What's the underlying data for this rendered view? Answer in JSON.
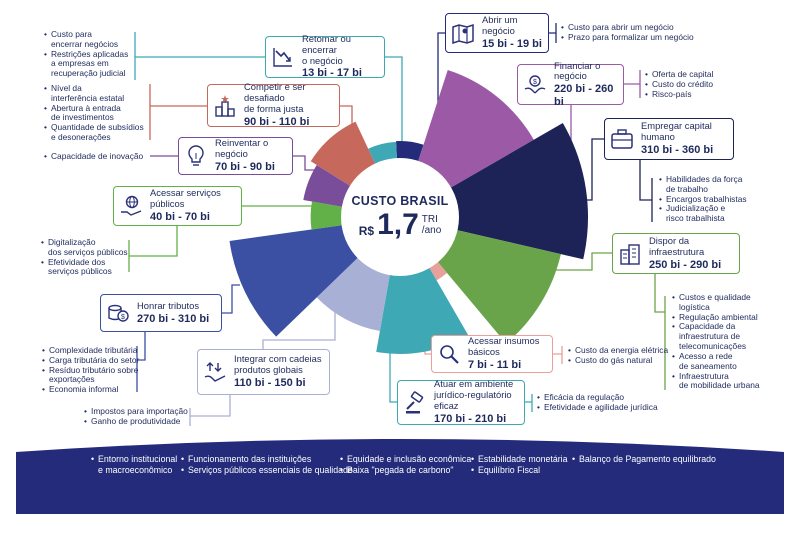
{
  "colors": {
    "navy": "#232b7a",
    "teal": "#3fa8b5",
    "purple": "#9c5aa6",
    "dark_navy": "#1d2257",
    "green": "#6aa44a",
    "salmon": "#e8a09a",
    "red": "#c7685c",
    "violet": "#7a4d9b",
    "light_blue": "#a9b0d6",
    "blue": "#3b4fa3",
    "bright_green": "#62b048"
  },
  "center": {
    "title": "CUSTO BRASIL",
    "currency": "R$",
    "amount": "1,7",
    "unit_line1": "TRI",
    "unit_line2": "/ano"
  },
  "factors": {
    "abrir": {
      "title": "Abrir um negócio",
      "value": "15 bi - 19 bi",
      "icon": "map-icon",
      "notes": [
        "Custo para abrir um negócio",
        "Prazo para formalizar um negócio"
      ]
    },
    "financiar": {
      "title": "Financiar o negócio",
      "value": "220 bi - 260 bi",
      "icon": "money-hands-icon",
      "notes": [
        "Oferta de capital",
        "Custo do crédito",
        "Risco-país"
      ]
    },
    "capital_humano": {
      "title": "Empregar capital humano",
      "value": "310 bi - 360 bi",
      "icon": "briefcase-icon",
      "notes": [
        "Habilidades da força",
        "de trabalho",
        "Encargos trabalhistas",
        "Judicialização e",
        "risco trabalhista"
      ]
    },
    "infraestrutura": {
      "title": "Dispor da infraestrutura",
      "value": "250 bi - 290 bi",
      "icon": "buildings-icon",
      "notes": [
        "Custos e qualidade",
        "logística",
        "Regulação ambiental",
        "Capacidade da",
        "infraestrutura de",
        "telecomunicações",
        "Acesso a rede",
        "de saneamento",
        "Infraestrutura",
        "de mobilidade urbana"
      ]
    },
    "insumos": {
      "title": "Acessar insumos básicos",
      "value": "7 bi - 11 bi",
      "icon": "magnifier-icon",
      "notes": [
        "Custo da energia elétrica",
        "Custo do gás natural"
      ]
    },
    "juridico": {
      "title_line1": "Atuar em ambiente",
      "title_line2": "jurídico-regulatório eficaz",
      "value": "170 bi - 210 bi",
      "icon": "gavel-icon",
      "notes": [
        "Eficácia da regulação",
        "Efetividade e agilidade jurídica"
      ]
    },
    "cadeias": {
      "title_line1": "Integrar com cadeias",
      "title_line2": "produtos globais",
      "value": "110 bi - 150 bi",
      "icon": "exchange-icon",
      "notes": [
        "Impostos para importação",
        "Ganho de produtividade"
      ]
    },
    "tributos": {
      "title": "Honrar tributos",
      "value": "270 bi - 310 bi",
      "icon": "coins-icon",
      "notes": [
        "Complexidade tributária",
        "Carga tributária do setor",
        "Resíduo tributário sobre",
        "exportações",
        "Economia informal"
      ]
    },
    "servicos": {
      "title": "Acessar serviços públicos",
      "value": "40 bi - 70 bi",
      "icon": "globe-hand-icon",
      "notes": [
        "Digitalização",
        "dos serviços públicos",
        "Efetividade dos",
        "serviços públicos"
      ]
    },
    "reinventar": {
      "title": "Reinventar o negócio",
      "value": "70 bi - 90 bi",
      "icon": "lightbulb-icon",
      "notes": [
        "Capacidade de inovação"
      ]
    },
    "competir": {
      "title_line1": "Competir e ser desafiado",
      "title_line2": "de forma justa",
      "value": "90 bi - 110 bi",
      "icon": "podium-icon",
      "notes": [
        "Nível da",
        "interferência estatal",
        "Abertura à entrada",
        "de investimentos",
        "Quantidade de subsídios",
        "e desonerações"
      ]
    },
    "retomar": {
      "title_line1": "Retomar ou encerrar",
      "title_line2": "o negócio",
      "value": "13 bi - 17 bi",
      "icon": "chart-down-icon",
      "notes": [
        "Custo para",
        "encerrar negócios",
        "Restrições aplicadas",
        "a empresas em",
        "recuperação judicial"
      ]
    }
  },
  "chart_data": {
    "type": "pie",
    "title": "CUSTO BRASIL R$ 1,7 TRI /ano",
    "categories": [
      "Abrir um negócio",
      "Financiar o negócio",
      "Empregar capital humano",
      "Dispor da infraestrutura",
      "Acessar insumos básicos",
      "Atuar em ambiente jurídico-regulatório eficaz",
      "Integrar com cadeias produtos globais",
      "Honrar tributos",
      "Acessar serviços públicos",
      "Reinventar o negócio",
      "Competir e ser desafiado de forma justa",
      "Retomar ou encerrar o negócio"
    ],
    "ranges": [
      [
        15,
        19
      ],
      [
        220,
        260
      ],
      [
        310,
        360
      ],
      [
        250,
        290
      ],
      [
        7,
        11
      ],
      [
        170,
        210
      ],
      [
        110,
        150
      ],
      [
        270,
        310
      ],
      [
        40,
        70
      ],
      [
        70,
        90
      ],
      [
        90,
        110
      ],
      [
        13,
        17
      ]
    ],
    "unit": "R$ bi"
  },
  "footer": {
    "col1": [
      "Entorno institucional",
      "e macroeconômico"
    ],
    "col2": [
      "Funcionamento das instituições",
      "Serviços públicos essenciais de qualidade"
    ],
    "col3": [
      "Equidade e inclusão econômica",
      "Baixa \"pegada de carbono\""
    ],
    "col4": [
      "Estabilidade monetária",
      "Equilíbrio Fiscal"
    ],
    "col5": [
      "Balanço de Pagamento equilibrado"
    ]
  }
}
